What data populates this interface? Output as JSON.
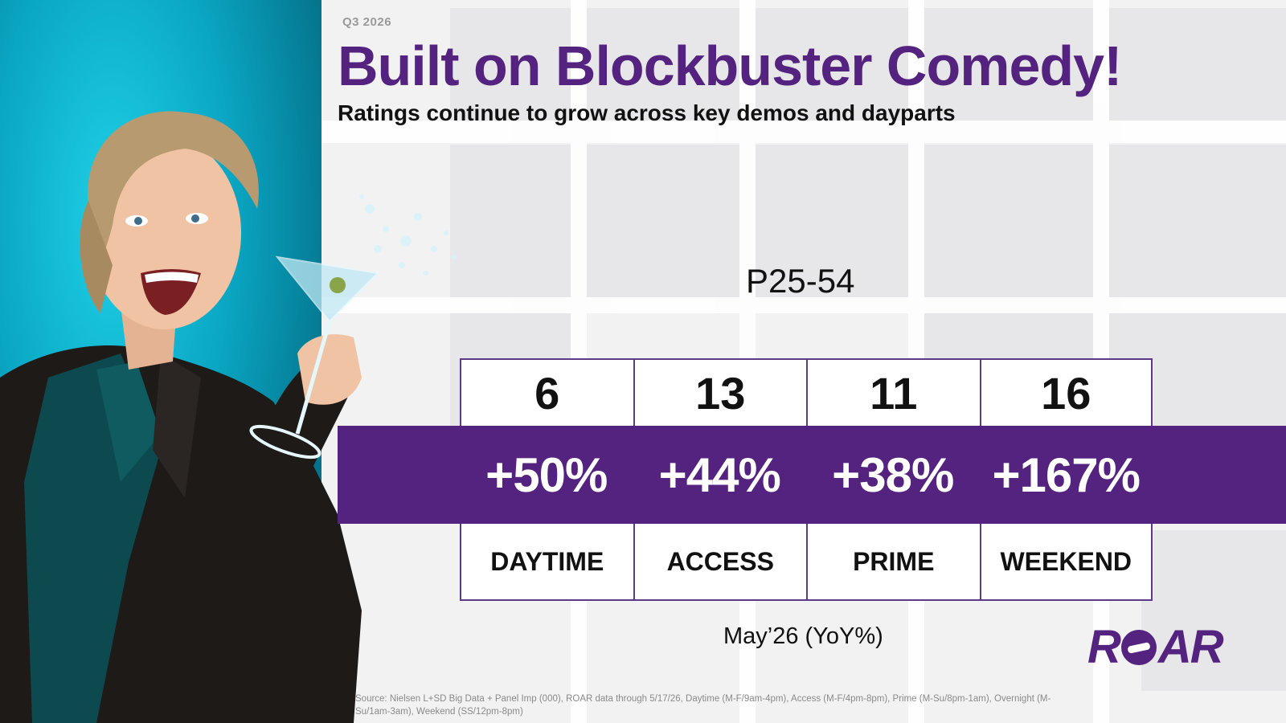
{
  "header": {
    "eyebrow": "Q3 2026",
    "title": "Built on Blockbuster Comedy!",
    "subtitle": "Ratings continue to grow across key demos and dayparts"
  },
  "demo_label": "P25-54",
  "dayparts": [
    {
      "value": "6",
      "change": "+50%",
      "label": "DAYTIME"
    },
    {
      "value": "13",
      "change": "+44%",
      "label": "ACCESS"
    },
    {
      "value": "11",
      "change": "+38%",
      "label": "PRIME"
    },
    {
      "value": "16",
      "change": "+167%",
      "label": "WEEKEND"
    }
  ],
  "period": "May’26 (YoY%)",
  "logo": {
    "left": "R",
    "right": "AR"
  },
  "source": "Source: Nielsen L+SD Big Data + Panel Imp (000), ROAR data through 5/17/26, Daytime (M-F/9am-4pm), Access (M-F/4pm-8pm), Prime (M-Su/8pm-1am), Overnight (M-Su/1am-3am), Weekend (SS/12pm-8pm)",
  "colors": {
    "brand_purple": "#54237f",
    "teal": "#0aa7c4"
  }
}
